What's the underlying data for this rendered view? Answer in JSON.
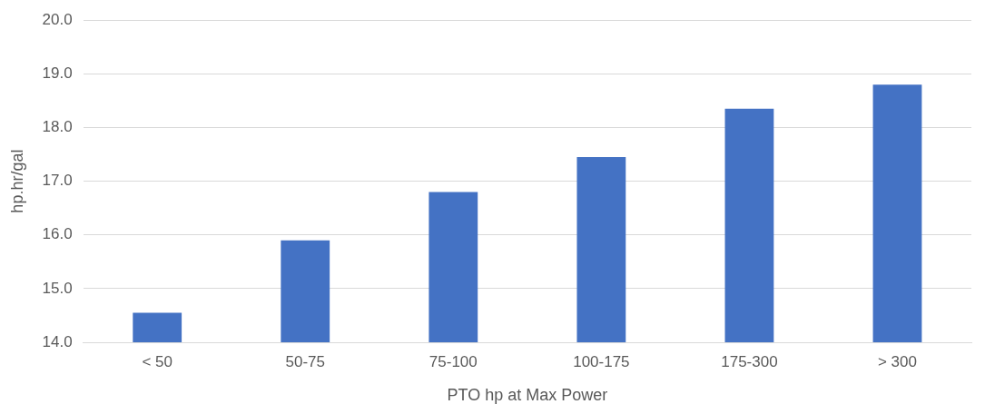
{
  "chart_data": {
    "type": "bar",
    "xlabel": "PTO hp at Max Power",
    "ylabel": "hp.hr/gal",
    "categories": [
      "< 50",
      "50-75",
      "75-100",
      "100-175",
      "175-300",
      "> 300"
    ],
    "values": [
      14.55,
      15.9,
      16.8,
      17.45,
      18.35,
      18.8
    ],
    "color": "#4472c4",
    "ylim": [
      14,
      20
    ],
    "yticks": [
      {
        "value": 14,
        "label": "14.0"
      },
      {
        "value": 15,
        "label": "15.0"
      },
      {
        "value": 16,
        "label": "16.0"
      },
      {
        "value": 17,
        "label": "17.0"
      },
      {
        "value": 18,
        "label": "18.0"
      },
      {
        "value": 19,
        "label": "19.0"
      },
      {
        "value": 20,
        "label": "20.0"
      }
    ],
    "grid": "y",
    "legend": false
  }
}
